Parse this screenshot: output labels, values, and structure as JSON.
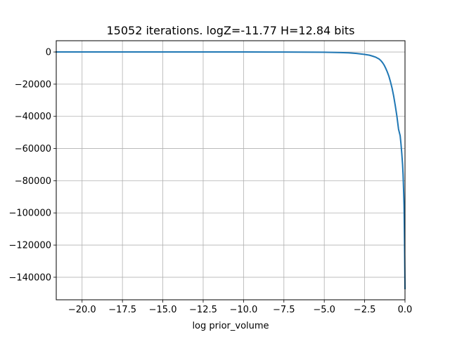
{
  "chart_data": {
    "type": "line",
    "title": "15052 iterations. logZ=-11.77 H=12.84 bits",
    "xlabel": "log prior_volume",
    "ylabel": "",
    "xlim": [
      -21.6,
      0
    ],
    "ylim": [
      -154000,
      7000
    ],
    "grid": true,
    "legend": "none",
    "x_ticks": [
      -20.0,
      -17.5,
      -15.0,
      -12.5,
      -10.0,
      -7.5,
      -5.0,
      -2.5,
      0.0
    ],
    "x_tick_labels": [
      "−20.0",
      "−17.5",
      "−15.0",
      "−12.5",
      "−10.0",
      "−7.5",
      "−5.0",
      "−2.5",
      "0.0"
    ],
    "y_ticks": [
      0,
      -20000,
      -40000,
      -60000,
      -80000,
      -100000,
      -120000,
      -140000
    ],
    "y_tick_labels": [
      "0",
      "−20000",
      "−40000",
      "−60000",
      "−80000",
      "−100000",
      "−120000",
      "−140000"
    ],
    "series": [
      {
        "color": "#1f77b4",
        "x": [
          -21.6,
          -20.0,
          -15.0,
          -10.0,
          -7.5,
          -5.0,
          -4.0,
          -3.5,
          -3.0,
          -2.5,
          -2.2,
          -2.0,
          -1.8,
          -1.6,
          -1.5,
          -1.4,
          -1.3,
          -1.2,
          -1.1,
          -1.0,
          -0.9,
          -0.8,
          -0.7,
          -0.6,
          -0.5,
          -0.4,
          -0.3,
          -0.25,
          -0.2,
          -0.15,
          -0.12,
          -0.1,
          -0.08,
          -0.06,
          -0.05,
          -0.04,
          -0.03,
          -0.02,
          -0.01,
          0.0
        ],
        "y": [
          0,
          0,
          0,
          0,
          -20,
          -150,
          -350,
          -550,
          -900,
          -1500,
          -2000,
          -2600,
          -3300,
          -4400,
          -5300,
          -6500,
          -8000,
          -10000,
          -12300,
          -15000,
          -18500,
          -22500,
          -27500,
          -33500,
          -40000,
          -48000,
          -52000,
          -57000,
          -63000,
          -70000,
          -76000,
          -82000,
          -88000,
          -95000,
          -102000,
          -110000,
          -118000,
          -127000,
          -137000,
          -147000
        ]
      }
    ]
  }
}
